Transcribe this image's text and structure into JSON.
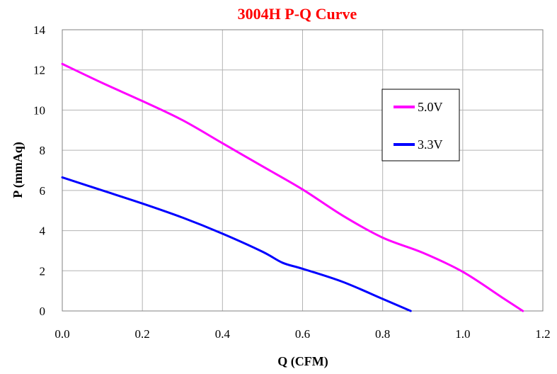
{
  "chart_data": {
    "type": "line",
    "title": "3004H P-Q Curve",
    "xlabel": "Q (CFM)",
    "ylabel": "P (mmAq)",
    "xlim": [
      0,
      1.2
    ],
    "ylim": [
      0,
      14
    ],
    "x_ticks": [
      "0.0",
      "0.2",
      "0.4",
      "0.6",
      "0.8",
      "1.0",
      "1.2"
    ],
    "y_ticks": [
      "0",
      "2",
      "4",
      "6",
      "8",
      "10",
      "12",
      "14"
    ],
    "grid": true,
    "legend_position": "upper-right",
    "series": [
      {
        "name": "5.0V",
        "color": "#ff00ff",
        "x": [
          0.0,
          0.1,
          0.2,
          0.3,
          0.4,
          0.5,
          0.6,
          0.7,
          0.8,
          0.9,
          1.0,
          1.1,
          1.15
        ],
        "y": [
          12.3,
          11.35,
          10.45,
          9.5,
          8.35,
          7.2,
          6.05,
          4.75,
          3.65,
          2.9,
          1.95,
          0.65,
          0.0
        ]
      },
      {
        "name": "3.3V",
        "color": "#0000ff",
        "x": [
          0.0,
          0.1,
          0.2,
          0.3,
          0.4,
          0.5,
          0.55,
          0.6,
          0.7,
          0.8,
          0.87
        ],
        "y": [
          6.65,
          6.0,
          5.35,
          4.65,
          3.85,
          2.95,
          2.4,
          2.1,
          1.45,
          0.6,
          0.0
        ]
      }
    ]
  }
}
